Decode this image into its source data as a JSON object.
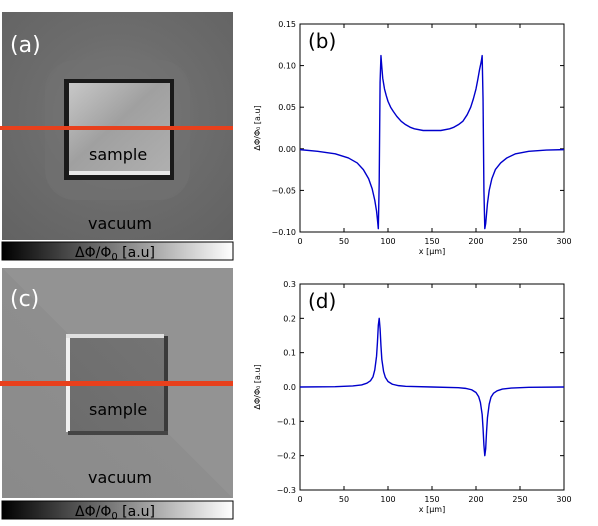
{
  "panels": {
    "a": {
      "label": "(a)",
      "sample_label": "sample",
      "vacuum_label": "vacuum",
      "colorbar_label": "ΔΦ/Φ",
      "colorbar_sub": "0",
      "colorbar_unit": " [a.u]",
      "line_color": "#e8401c"
    },
    "c": {
      "label": "(c)",
      "sample_label": "sample",
      "vacuum_label": "vacuum",
      "colorbar_label": "ΔΦ/Φ",
      "colorbar_sub": "0",
      "colorbar_unit": " [a.u]",
      "line_color": "#e8401c"
    }
  },
  "chart_data": [
    {
      "id": "b",
      "type": "line",
      "panel_label": "(b)",
      "xlabel": "x [μm]",
      "ylabel": "ΔΦ/Φ₀ [a.u]",
      "xlim": [
        0,
        300
      ],
      "ylim": [
        -0.1,
        0.15
      ],
      "xticks": [
        "0",
        "50",
        "100",
        "150",
        "200",
        "250",
        "300"
      ],
      "yticks": [
        "−0.10",
        "−0.05",
        "0.00",
        "0.05",
        "0.10",
        "0.15"
      ],
      "ytick_values": [
        -0.1,
        -0.05,
        0.0,
        0.05,
        0.1,
        0.15
      ],
      "xtick_values": [
        0,
        50,
        100,
        150,
        200,
        250,
        300
      ],
      "color": "#0000cc",
      "x": [
        0,
        20,
        40,
        55,
        65,
        72,
        78,
        82,
        85,
        87,
        88,
        89,
        90,
        91,
        92,
        93,
        94,
        96,
        98,
        100,
        103,
        106,
        110,
        115,
        120,
        125,
        130,
        140,
        150,
        160,
        170,
        175,
        180,
        185,
        190,
        194,
        197,
        200,
        202,
        204,
        206,
        207,
        208,
        209,
        210,
        211,
        212,
        213,
        215,
        218,
        222,
        228,
        235,
        245,
        260,
        280,
        300
      ],
      "y": [
        -0.001,
        -0.003,
        -0.006,
        -0.011,
        -0.017,
        -0.025,
        -0.036,
        -0.048,
        -0.062,
        -0.075,
        -0.085,
        -0.096,
        -0.04,
        0.08,
        0.112,
        0.098,
        0.085,
        0.072,
        0.064,
        0.057,
        0.05,
        0.045,
        0.039,
        0.033,
        0.029,
        0.026,
        0.024,
        0.022,
        0.022,
        0.022,
        0.024,
        0.026,
        0.029,
        0.033,
        0.041,
        0.05,
        0.06,
        0.072,
        0.083,
        0.095,
        0.105,
        0.112,
        0.06,
        -0.05,
        -0.096,
        -0.09,
        -0.078,
        -0.066,
        -0.05,
        -0.036,
        -0.025,
        -0.017,
        -0.011,
        -0.006,
        -0.003,
        -0.0015,
        -0.001
      ]
    },
    {
      "id": "d",
      "type": "line",
      "panel_label": "(d)",
      "xlabel": "x [μm]",
      "ylabel": "ΔΦ/Φ₀ [a.u]",
      "xlim": [
        0,
        300
      ],
      "ylim": [
        -0.3,
        0.3
      ],
      "xticks": [
        "0",
        "50",
        "100",
        "150",
        "200",
        "250",
        "300"
      ],
      "yticks": [
        "−0.3",
        "−0.2",
        "−0.1",
        "0.0",
        "0.1",
        "0.2",
        "0.3"
      ],
      "ytick_values": [
        -0.3,
        -0.2,
        -0.1,
        0.0,
        0.1,
        0.2,
        0.3
      ],
      "xtick_values": [
        0,
        50,
        100,
        150,
        200,
        250,
        300
      ],
      "color": "#0000cc",
      "x": [
        0,
        40,
        60,
        70,
        76,
        80,
        83,
        85,
        87,
        88,
        89,
        90,
        91,
        92,
        93,
        95,
        97,
        100,
        105,
        112,
        120,
        150,
        180,
        188,
        195,
        200,
        203,
        205,
        207,
        208,
        209,
        210,
        211,
        212,
        213,
        215,
        217,
        220,
        224,
        230,
        240,
        260,
        300
      ],
      "y": [
        0,
        0.001,
        0.003,
        0.006,
        0.011,
        0.018,
        0.03,
        0.05,
        0.09,
        0.13,
        0.18,
        0.2,
        0.17,
        0.12,
        0.08,
        0.045,
        0.028,
        0.016,
        0.008,
        0.004,
        0.002,
        0,
        -0.002,
        -0.004,
        -0.008,
        -0.016,
        -0.028,
        -0.045,
        -0.08,
        -0.12,
        -0.17,
        -0.2,
        -0.18,
        -0.13,
        -0.09,
        -0.05,
        -0.03,
        -0.018,
        -0.011,
        -0.006,
        -0.003,
        -0.001,
        0
      ]
    }
  ]
}
